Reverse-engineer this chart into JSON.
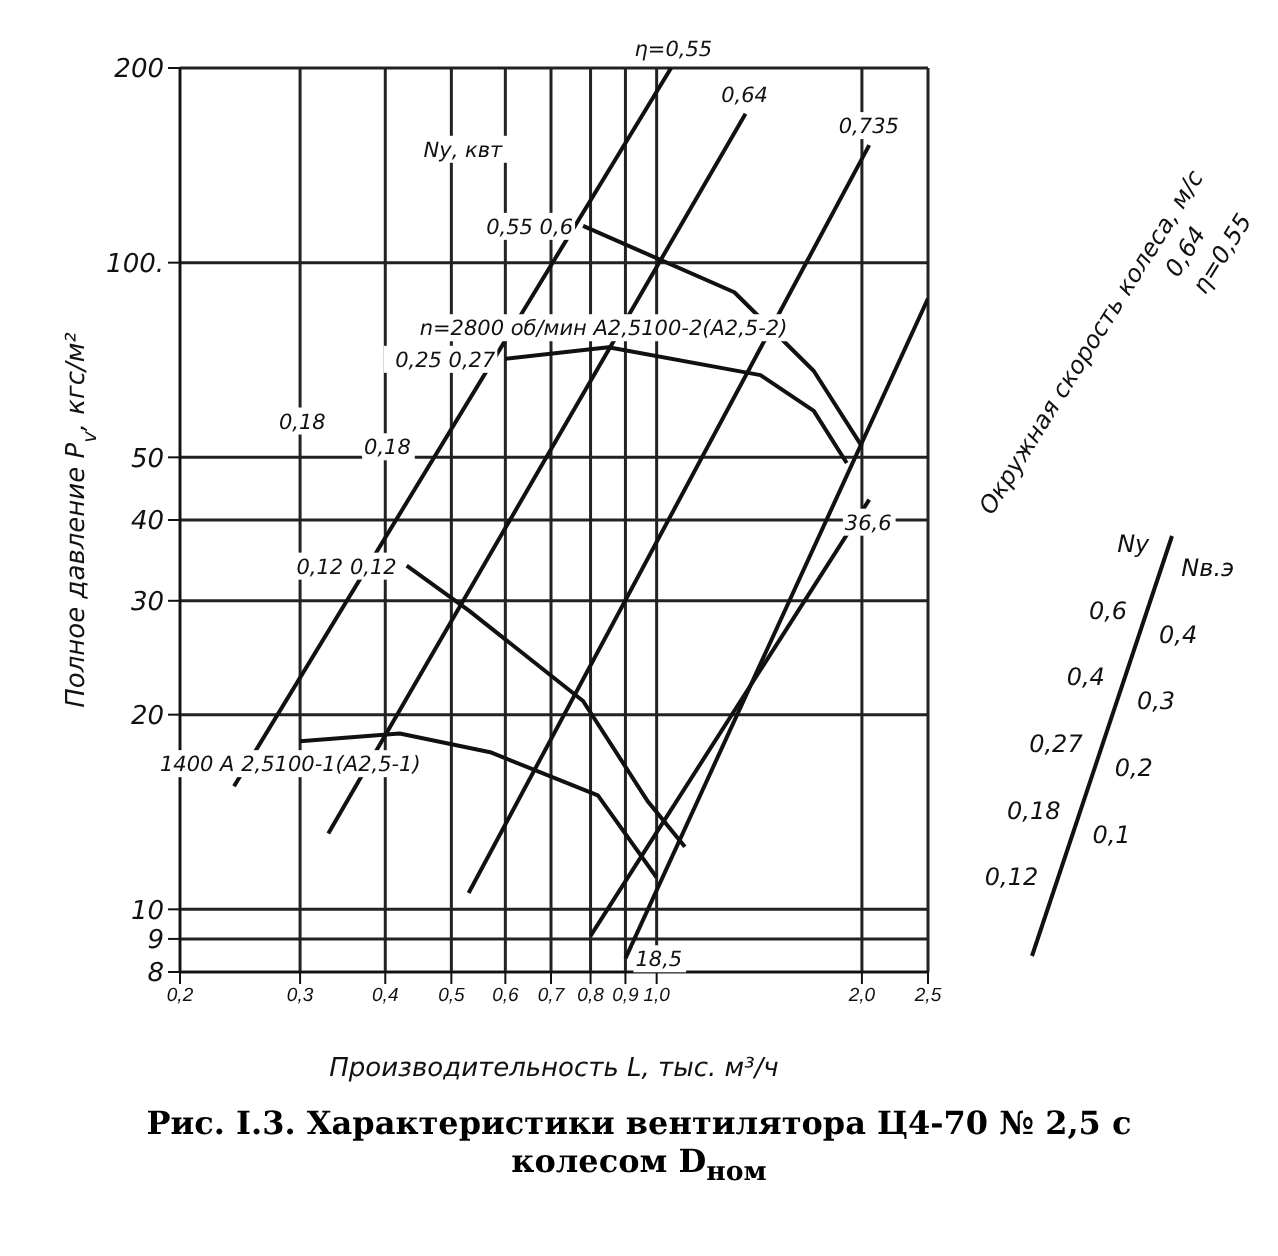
{
  "chart_data": {
    "type": "line",
    "title": "Рис. I.3. Характеристики вентилятора Ц4-70 № 2,5 с колесом D$_{ном}$",
    "xlabel": "Производительность L, тыс. м³/ч",
    "ylabel": "Полное давление P$_{v}$, кгс/м²",
    "log": "xy",
    "grid": true,
    "marker": "none",
    "line_style": "solid",
    "xlim": [
      0.2,
      2.5
    ],
    "ylim": [
      8,
      200
    ],
    "xticks": [
      {
        "value": 0.2,
        "label": "0,2"
      },
      {
        "value": 0.3,
        "label": "0,3"
      },
      {
        "value": 0.4,
        "label": "0,4"
      },
      {
        "value": 0.5,
        "label": "0,5"
      },
      {
        "value": 0.6,
        "label": "0,6"
      },
      {
        "value": 0.7,
        "label": "0,7"
      },
      {
        "value": 0.8,
        "label": "0,8"
      },
      {
        "value": 0.9,
        "label": "0,9"
      },
      {
        "value": 1.0,
        "label": "1,0"
      },
      {
        "value": 2.0,
        "label": "2,0"
      },
      {
        "value": 2.5,
        "label": "2,5"
      }
    ],
    "yticks": [
      8,
      9,
      10,
      20,
      30,
      40,
      50,
      {
        "value": 100,
        "label": "100."
      },
      200
    ],
    "series": [
      {
        "color": "#111111",
        "x": [
          0.6,
          0.85,
          1.42,
          1.7,
          1.9
        ],
        "values": [
          71,
          74,
          67,
          59,
          49
        ]
      },
      {
        "color": "#111111",
        "x": [
          0.3,
          0.42,
          0.57,
          0.82,
          1.0
        ],
        "values": [
          18.2,
          18.7,
          17.5,
          15,
          11.2
        ]
      },
      {
        "color": "#111111",
        "x": [
          0.43,
          0.53,
          0.78,
          0.97,
          1.1
        ],
        "values": [
          34,
          29,
          21,
          14.7,
          12.5
        ]
      },
      {
        "color": "#111111",
        "x": [
          0.78,
          1.3,
          1.7,
          2.0
        ],
        "values": [
          114,
          90,
          68,
          52
        ]
      },
      {
        "color": "#111111",
        "x": [
          0.24,
          1.05
        ],
        "values": [
          15.5,
          200
        ]
      },
      {
        "color": "#111111",
        "x": [
          0.33,
          1.35
        ],
        "values": [
          13.1,
          170
        ]
      },
      {
        "color": "#111111",
        "x": [
          0.53,
          2.05
        ],
        "values": [
          10.6,
          152
        ]
      },
      {
        "color": "#111111",
        "x": [
          0.8,
          2.05
        ],
        "values": [
          9.1,
          43
        ]
      },
      {
        "color": "#111111",
        "x": [
          0.9,
          2.5
        ],
        "values": [
          8.4,
          88
        ]
      }
    ],
    "annotations": [
      {
        "text": "n=2800 об/мин А2,5100-2(А2,5-2)",
        "x": 0.85,
        "y": 74
      },
      {
        "text": "1400 А 2,5100-1(А2,5-1)",
        "x": 0.3,
        "y": 18.2
      },
      {
        "text": "0,55 0,6",
        "x": 0.78,
        "y": 114
      },
      {
        "text": "0,25 0,27",
        "x": 0.6,
        "y": 71
      },
      {
        "text": "0,12 0,12",
        "x": 0.43,
        "y": 34
      },
      {
        "text": "η=0,55",
        "x": 1.05,
        "y": 200
      },
      {
        "text": "0,64",
        "x": 1.35,
        "y": 170
      },
      {
        "text": "0,735",
        "x": 2.05,
        "y": 152
      },
      {
        "text": "36,6",
        "x": 2.05,
        "y": 43
      },
      {
        "text": "18,5",
        "x": 0.9,
        "y": 8.4
      },
      "Nу, квт",
      "0,18",
      "0,18",
      "Окружная скорость колеса, м/с",
      "0,64",
      "η=0,55",
      "Nу",
      "Nв.э",
      "0,6",
      "0,4",
      "0,4",
      "0,3",
      "0,27",
      "0,2",
      "0,18",
      "0,1",
      "0,12"
    ]
  }
}
